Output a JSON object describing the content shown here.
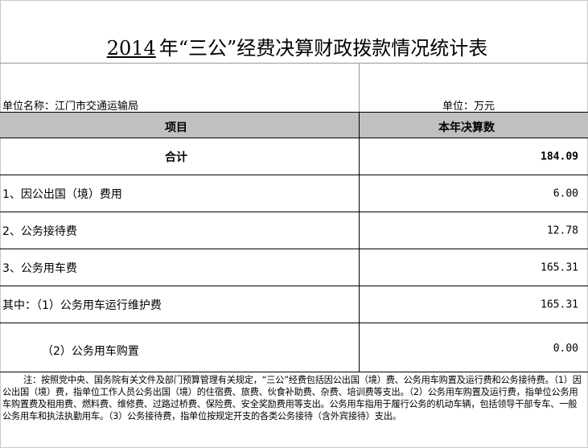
{
  "title": {
    "year": "2014",
    "text": "年“三公”经费决算财政拨款情况统计表"
  },
  "unit_name": "单位名称：江门市交通运输局",
  "unit": "单位：万元",
  "columns": [
    "项目",
    "本年决算数"
  ],
  "rows": [
    {
      "label": "合计",
      "value": "184.09"
    },
    {
      "label": "1、因公出国（境）费用",
      "value": "6.00"
    },
    {
      "label": "2、公务接待费",
      "value": "12.78"
    },
    {
      "label": "3、公务用车费",
      "value": "165.31"
    },
    {
      "label": "其中：（1）公务用车运行维护费",
      "value": "165.31"
    },
    {
      "label": "（2）公务用车购置",
      "value": "0.00"
    }
  ],
  "note": "注：按照党中央、国务院有关文件及部门预算管理有关规定，“三公”经费包括因公出国（境）费、公务用车购置及运行费和公务接待费。（1）因公出国（境）费，指单位工作人员公务出国（境）的住宿费、旅费、伙食补助费、杂费、培训费等支出。（2）公务用车购置及运行费，指单位公务用车购置费及租用费、燃料费、维修费、过路过桥费、保险费、安全奖励费用等支出。公务用车指用于履行公务的机动车辆，包括领导干部专车、一般公务用车和执法执勤用车。（3）公务接待费，指单位按规定开支的各类公务接待（含外宾接待）支出。"
}
